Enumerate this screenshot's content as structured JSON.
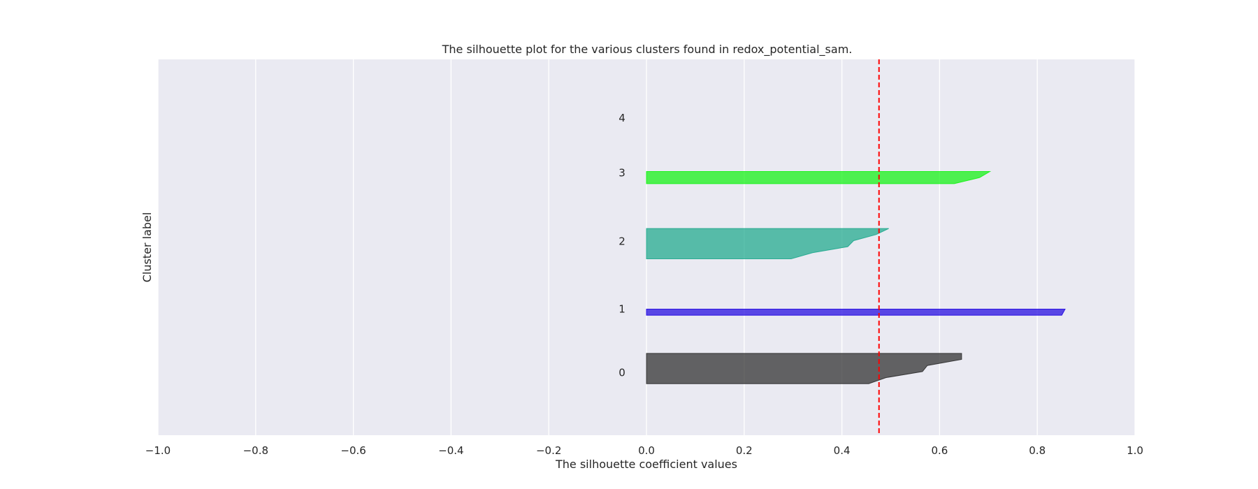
{
  "chart_data": {
    "type": "area",
    "title": "The silhouette plot for the various clusters found in redox_potential_sam.",
    "xlabel": "The silhouette coefficient values",
    "ylabel": "Cluster label",
    "xlim": [
      -1.0,
      1.0
    ],
    "xticks": [
      -1.0,
      -0.8,
      -0.6,
      -0.4,
      -0.2,
      0.0,
      0.2,
      0.4,
      0.6,
      0.8,
      1.0
    ],
    "xtick_labels": [
      "−1.0",
      "−0.8",
      "−0.6",
      "−0.4",
      "−0.2",
      "0.0",
      "0.2",
      "0.4",
      "0.6",
      "0.8",
      "1.0"
    ],
    "ylim": [
      0,
      62
    ],
    "grid": true,
    "average_silhouette_score": 0.476,
    "average_line_color": "#ff0000",
    "background_color": "#eaeaf2",
    "clusters": [
      {
        "label": "0",
        "color": "#262626",
        "y_lower": 8.5,
        "label_y": 10.3,
        "values": [
          0.645,
          0.645,
          0.575,
          0.565,
          0.49,
          0.455
        ]
      },
      {
        "label": "1",
        "color": "#1a00e0",
        "y_lower": 19.8,
        "label_y": 20.8,
        "values": [
          0.857,
          0.85
        ]
      },
      {
        "label": "2",
        "color": "#17a689",
        "y_lower": 29.1,
        "label_y": 32.0,
        "values": [
          0.496,
          0.47,
          0.424,
          0.412,
          0.34,
          0.296
        ]
      },
      {
        "label": "3",
        "color": "#0af20a",
        "y_lower": 41.5,
        "label_y": 43.3,
        "values": [
          0.703,
          0.682,
          0.63
        ]
      },
      {
        "label": "4",
        "color": "#cccccc",
        "y_lower": 52.0,
        "label_y": 52.3,
        "values": []
      }
    ]
  }
}
